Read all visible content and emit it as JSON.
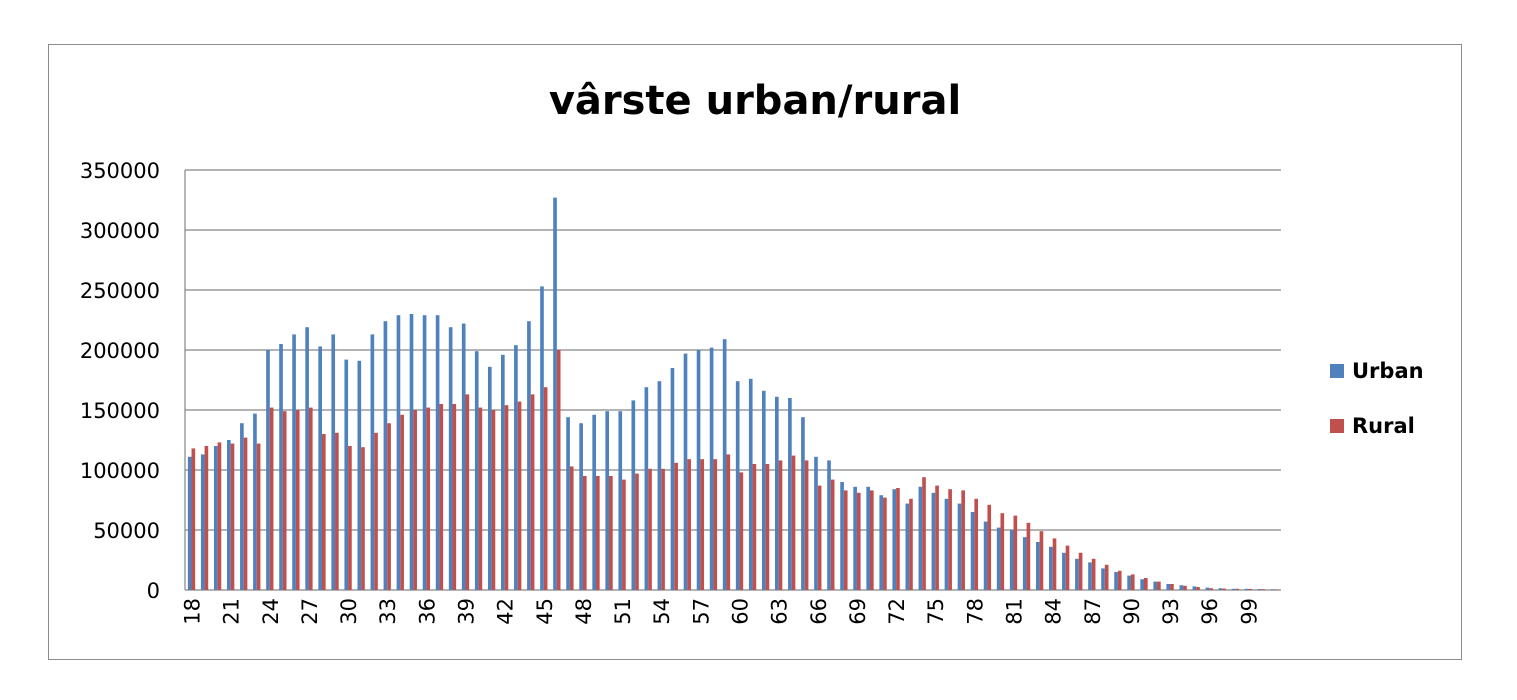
{
  "chart_data": {
    "type": "bar",
    "title": "vârste urban/rural",
    "xlabel": "",
    "ylabel": "",
    "ylim": [
      0,
      350000
    ],
    "yticks": [
      0,
      50000,
      100000,
      150000,
      200000,
      250000,
      300000,
      350000
    ],
    "grid": true,
    "legend_position": "right",
    "colors": {
      "Urban": "#4f81bd",
      "Rural": "#c0504d"
    },
    "categories": [
      18,
      19,
      20,
      21,
      22,
      23,
      24,
      25,
      26,
      27,
      28,
      29,
      30,
      31,
      32,
      33,
      34,
      35,
      36,
      37,
      38,
      39,
      40,
      41,
      42,
      43,
      44,
      45,
      46,
      47,
      48,
      49,
      50,
      51,
      52,
      53,
      54,
      55,
      56,
      57,
      58,
      59,
      60,
      61,
      62,
      63,
      64,
      65,
      66,
      67,
      68,
      69,
      70,
      71,
      72,
      73,
      74,
      75,
      76,
      77,
      78,
      79,
      80,
      81,
      82,
      83,
      84,
      85,
      86,
      87,
      88,
      89,
      90,
      91,
      92,
      93,
      94,
      95,
      96,
      97,
      98,
      99,
      100,
      101
    ],
    "xtick_labels_shown": [
      "18",
      "21",
      "24",
      "27",
      "30",
      "33",
      "36",
      "39",
      "42",
      "45",
      "48",
      "51",
      "54",
      "57",
      "60",
      "63",
      "66",
      "69",
      "72",
      "75",
      "78",
      "81",
      "84",
      "87",
      "90",
      "93",
      "96",
      "99"
    ],
    "series": [
      {
        "name": "Urban",
        "values": [
          111000,
          113000,
          120000,
          125000,
          139000,
          147000,
          200000,
          205000,
          213000,
          219000,
          203000,
          213000,
          192000,
          191000,
          213000,
          224000,
          229000,
          230000,
          229000,
          229000,
          219000,
          222000,
          199000,
          186000,
          196000,
          204000,
          224000,
          253000,
          327000,
          144000,
          139000,
          146000,
          149000,
          149000,
          158000,
          169000,
          174000,
          185000,
          197000,
          200000,
          202000,
          209000,
          174000,
          176000,
          166000,
          161000,
          160000,
          144000,
          111000,
          108000,
          90000,
          86000,
          86000,
          79000,
          84000,
          72000,
          86000,
          81000,
          76000,
          72000,
          65000,
          57000,
          52000,
          50000,
          44000,
          40000,
          36000,
          31000,
          26000,
          23000,
          18000,
          15000,
          12000,
          9000,
          7000,
          5000,
          4000,
          3000,
          2000,
          1500,
          1000,
          1000,
          800,
          600
        ]
      },
      {
        "name": "Rural",
        "values": [
          118000,
          120000,
          123000,
          122000,
          127000,
          122000,
          152000,
          149000,
          150000,
          152000,
          130000,
          131000,
          120000,
          119000,
          131000,
          139000,
          146000,
          150000,
          152000,
          155000,
          155000,
          163000,
          152000,
          150000,
          154000,
          157000,
          163000,
          169000,
          200000,
          103000,
          95000,
          95000,
          95000,
          92000,
          97000,
          101000,
          101000,
          106000,
          109000,
          109000,
          109000,
          113000,
          98000,
          105000,
          105000,
          108000,
          112000,
          108000,
          87000,
          92000,
          83000,
          81000,
          83000,
          77000,
          85000,
          76000,
          94000,
          87000,
          84000,
          83000,
          76000,
          71000,
          64000,
          62000,
          56000,
          49000,
          43000,
          37000,
          31000,
          26000,
          21000,
          16000,
          13000,
          10000,
          7000,
          5000,
          3500,
          2500,
          1500,
          1200,
          1000,
          900,
          700,
          500
        ]
      }
    ]
  }
}
